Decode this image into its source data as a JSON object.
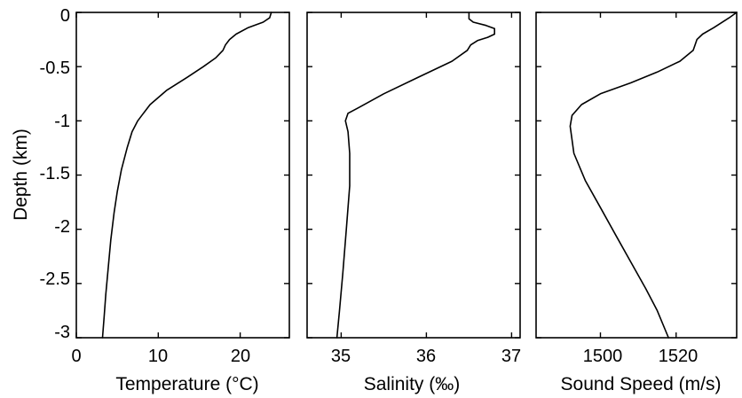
{
  "colors": {
    "line": "#000000",
    "frame": "#000000",
    "background": "#ffffff"
  },
  "ylabel": "Depth (km)",
  "yticks": [
    "0",
    "-0.5",
    "-1",
    "-1.5",
    "-2",
    "-2.5",
    "-3"
  ],
  "chart_data": [
    {
      "type": "line",
      "xlabel": "Temperature (°C)",
      "xlim": [
        0,
        26
      ],
      "xticks": [
        "0",
        "10",
        "20"
      ],
      "ylabel": "Depth (km)",
      "ylim": [
        -3,
        0
      ],
      "grid": false,
      "series": [
        {
          "x": [
            23.8,
            23.6,
            22.8,
            21.0,
            19.5,
            18.7,
            18.2,
            17.9,
            17.0,
            15.5,
            13.5,
            11.0,
            9.0,
            8.0,
            7.5,
            6.8,
            6.2,
            5.5,
            5.0,
            4.6,
            4.2,
            3.9,
            3.6,
            3.4,
            3.2
          ],
          "y": [
            0,
            -0.05,
            -0.09,
            -0.14,
            -0.2,
            -0.25,
            -0.3,
            -0.35,
            -0.42,
            -0.5,
            -0.6,
            -0.72,
            -0.85,
            -0.95,
            -1.0,
            -1.1,
            -1.25,
            -1.45,
            -1.65,
            -1.85,
            -2.1,
            -2.35,
            -2.6,
            -2.8,
            -3.0
          ]
        }
      ]
    },
    {
      "type": "line",
      "xlabel": "Salinity (‰)",
      "xlim": [
        34.6,
        37.1
      ],
      "xticks": [
        "35",
        "36",
        "37"
      ],
      "ylabel": "Depth (km)",
      "ylim": [
        -3,
        0
      ],
      "grid": false,
      "series": [
        {
          "x": [
            36.5,
            36.5,
            36.55,
            36.7,
            36.8,
            36.8,
            36.72,
            36.6,
            36.52,
            36.48,
            36.3,
            35.9,
            35.5,
            35.2,
            35.08,
            35.05,
            35.08,
            35.1,
            35.1,
            35.06,
            35.02,
            34.98,
            34.95
          ],
          "y": [
            0,
            -0.06,
            -0.09,
            -0.12,
            -0.15,
            -0.2,
            -0.23,
            -0.26,
            -0.3,
            -0.35,
            -0.45,
            -0.6,
            -0.75,
            -0.88,
            -0.93,
            -1.0,
            -1.1,
            -1.3,
            -1.6,
            -2.0,
            -2.4,
            -2.75,
            -3.0
          ]
        }
      ]
    },
    {
      "type": "line",
      "xlabel": "Sound Speed (m/s)",
      "xlim": [
        1483,
        1536
      ],
      "xticks": [
        "1500",
        "1520"
      ],
      "ylabel": "Depth (km)",
      "ylim": [
        -3,
        0
      ],
      "grid": false,
      "series": [
        {
          "x": [
            1536,
            1534,
            1530,
            1527,
            1525.5,
            1525,
            1524.5,
            1521,
            1515,
            1508,
            1500,
            1495,
            1492.5,
            1492,
            1493,
            1496,
            1500,
            1504,
            1508,
            1512,
            1515,
            1518
          ],
          "y": [
            0,
            -0.05,
            -0.14,
            -0.2,
            -0.25,
            -0.3,
            -0.35,
            -0.45,
            -0.55,
            -0.65,
            -0.75,
            -0.85,
            -0.95,
            -1.05,
            -1.3,
            -1.55,
            -1.8,
            -2.05,
            -2.3,
            -2.55,
            -2.75,
            -3.0
          ]
        }
      ]
    }
  ]
}
